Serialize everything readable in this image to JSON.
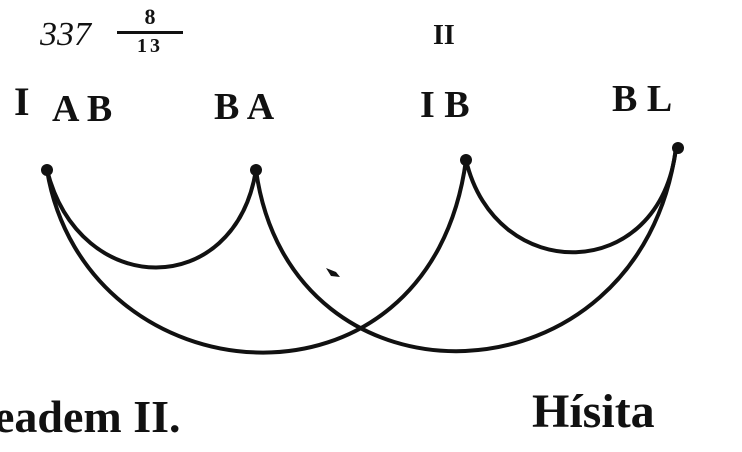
{
  "fraction": {
    "whole": "337",
    "numerator": "8",
    "denominator": "13"
  },
  "top_marks": {
    "left": "I",
    "numeral_right": "II"
  },
  "node_labels": [
    "A B",
    "B A",
    "I B",
    "B L"
  ],
  "bottom_text": {
    "left": "eadem II.",
    "right": "Hísita"
  },
  "colors": {
    "ink": "#111111",
    "paper": "#ffffff"
  }
}
